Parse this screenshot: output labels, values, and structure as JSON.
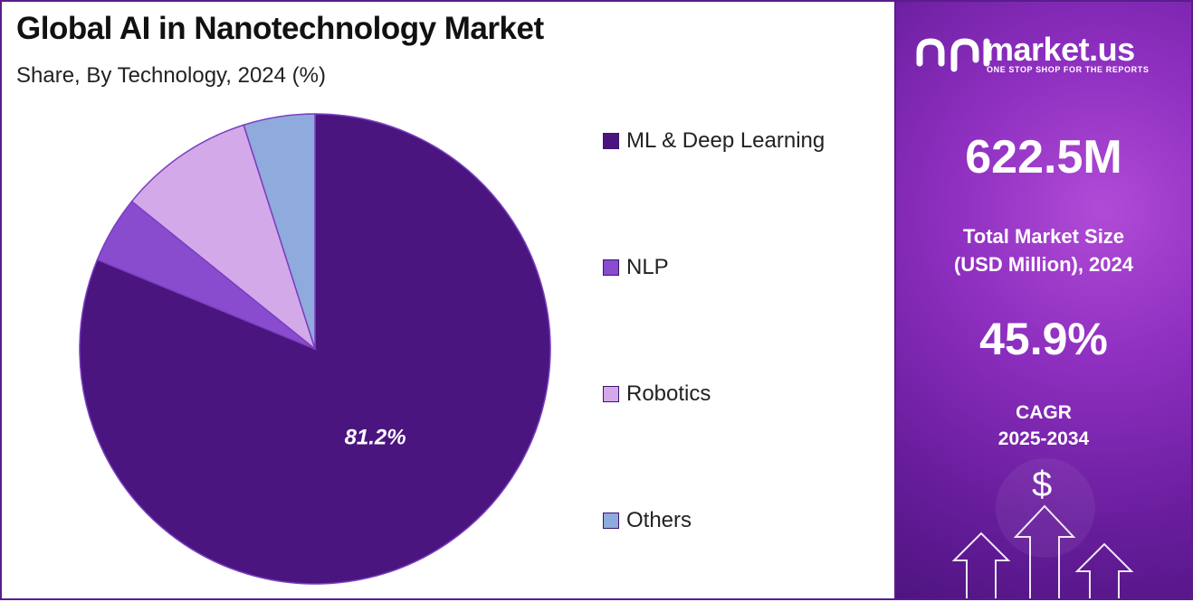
{
  "header": {
    "title": "Global AI in Nanotechnology Market",
    "subtitle": "Share, By Technology, 2024 (%)"
  },
  "chart_data": {
    "type": "pie",
    "categories": [
      "ML & Deep Learning",
      "NLP",
      "Robotics",
      "Others"
    ],
    "values": [
      81.2,
      4.6,
      9.3,
      4.9
    ],
    "colors": [
      "#4b1580",
      "#8a4ccf",
      "#d4a9ea",
      "#8faadc"
    ],
    "data_labels": [
      "81.2%",
      "",
      "",
      ""
    ],
    "legend_position": "right"
  },
  "sidebar": {
    "brand": "market.us",
    "tagline": "ONE STOP SHOP FOR THE REPORTS",
    "market_size": "622.5M",
    "market_size_label_1": "Total Market Size",
    "market_size_label_2": "(USD Million), 2024",
    "cagr": "45.9%",
    "cagr_label_1": "CAGR",
    "cagr_label_2": "2025-2034",
    "dollar_symbol": "$"
  }
}
